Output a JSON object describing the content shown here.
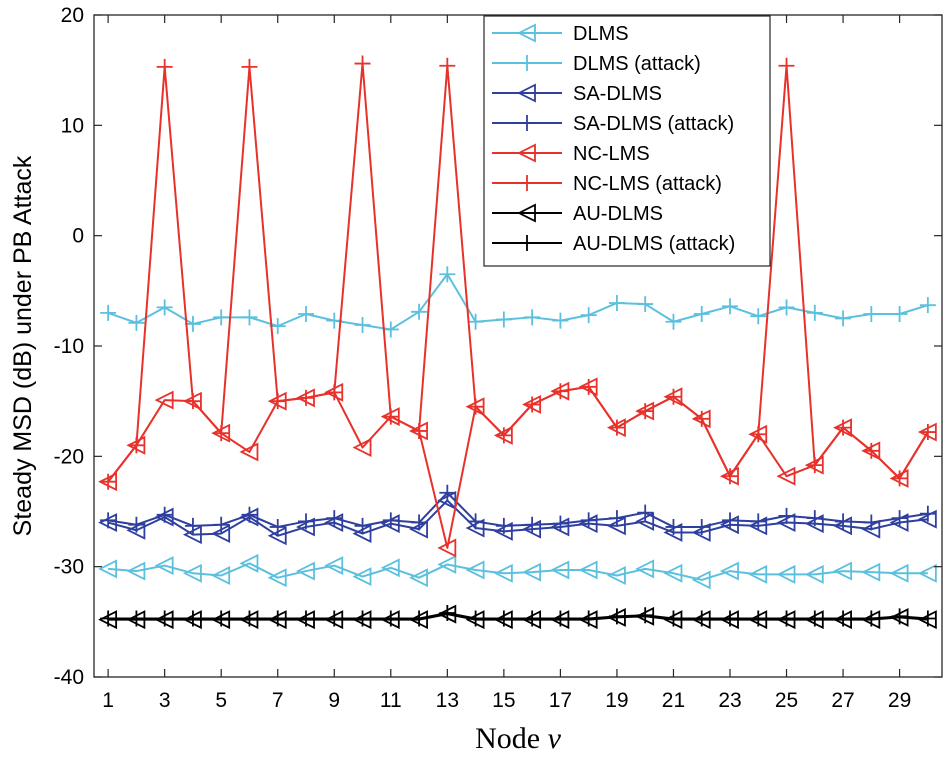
{
  "chart_data": {
    "type": "line",
    "title": "",
    "xlabel": "Node ",
    "xlabel_var": "v",
    "ylabel": "Steady  MSD (dB) under PB Attack",
    "xlim": [
      0.5,
      30.5
    ],
    "ylim": [
      -40,
      20
    ],
    "xticks": [
      1,
      3,
      5,
      7,
      9,
      11,
      13,
      15,
      17,
      19,
      21,
      23,
      25,
      27,
      29
    ],
    "yticks": [
      -40,
      -30,
      -20,
      -10,
      0,
      10,
      20
    ],
    "grid": false,
    "legend_position": "top-right",
    "x": [
      1,
      2,
      3,
      4,
      5,
      6,
      7,
      8,
      9,
      10,
      11,
      12,
      13,
      14,
      15,
      16,
      17,
      18,
      19,
      20,
      21,
      22,
      23,
      24,
      25,
      26,
      27,
      28,
      29,
      30
    ],
    "series": [
      {
        "name": "DLMS",
        "color": "#5bc0de",
        "marker": "triangle-left",
        "values": [
          -30.2,
          -30.4,
          -29.9,
          -30.6,
          -30.8,
          -29.7,
          -31.0,
          -30.4,
          -29.9,
          -30.9,
          -30.1,
          -31.0,
          -29.8,
          -30.3,
          -30.6,
          -30.5,
          -30.3,
          -30.3,
          -30.8,
          -30.2,
          -30.6,
          -31.2,
          -30.4,
          -30.7,
          -30.7,
          -30.7,
          -30.4,
          -30.5,
          -30.6,
          -30.6
        ]
      },
      {
        "name": "DLMS (attack)",
        "color": "#5bc0de",
        "marker": "plus",
        "values": [
          -7.0,
          -7.9,
          -6.5,
          -8.0,
          -7.4,
          -7.4,
          -8.2,
          -7.1,
          -7.7,
          -8.1,
          -8.5,
          -6.9,
          -3.5,
          -7.8,
          -7.6,
          -7.4,
          -7.7,
          -7.2,
          -6.1,
          -6.2,
          -7.8,
          -7.1,
          -6.4,
          -7.3,
          -6.5,
          -7.0,
          -7.5,
          -7.1,
          -7.1,
          -6.3
        ]
      },
      {
        "name": "SA-DLMS",
        "color": "#2e3f9e",
        "marker": "triangle-left",
        "values": [
          -26.0,
          -26.7,
          -25.5,
          -27.1,
          -27.0,
          -25.5,
          -27.2,
          -26.4,
          -26.0,
          -27.0,
          -26.1,
          -26.6,
          -24.0,
          -26.5,
          -26.8,
          -26.6,
          -26.4,
          -26.1,
          -26.3,
          -25.9,
          -26.9,
          -26.9,
          -26.2,
          -26.3,
          -26.0,
          -26.1,
          -26.3,
          -26.6,
          -26.0,
          -25.7
        ]
      },
      {
        "name": "SA-DLMS (attack)",
        "color": "#2e3f9e",
        "marker": "plus",
        "values": [
          -25.8,
          -26.2,
          -25.3,
          -26.3,
          -26.2,
          -25.3,
          -26.4,
          -25.9,
          -25.6,
          -26.3,
          -25.8,
          -26.0,
          -23.3,
          -25.9,
          -26.3,
          -26.2,
          -26.1,
          -25.8,
          -25.6,
          -25.1,
          -26.4,
          -26.4,
          -25.8,
          -25.9,
          -25.4,
          -25.6,
          -25.9,
          -26.0,
          -25.6,
          -25.2
        ]
      },
      {
        "name": "NC-LMS",
        "color": "#e8312a",
        "marker": "triangle-left",
        "values": [
          -22.3,
          -19.0,
          -14.9,
          -15.0,
          -17.9,
          -19.6,
          -15.0,
          -14.7,
          -14.2,
          -19.2,
          -16.4,
          -17.7,
          -28.3,
          -15.5,
          -18.1,
          -15.3,
          -14.1,
          -13.7,
          -17.4,
          -15.9,
          -14.6,
          -16.6,
          -21.8,
          -18.0,
          -21.8,
          -20.8,
          -17.4,
          -19.5,
          -22.0,
          -17.8
        ]
      },
      {
        "name": "NC-LMS (attack)",
        "color": "#e8312a",
        "marker": "plus",
        "values": [
          -22.3,
          -19.0,
          15.3,
          -15.0,
          -17.9,
          15.3,
          -15.0,
          -14.7,
          -14.2,
          15.6,
          -16.4,
          -17.7,
          15.4,
          -15.5,
          -18.1,
          -15.3,
          -14.1,
          -13.7,
          -17.4,
          -15.9,
          -14.6,
          -16.6,
          -21.8,
          -18.0,
          15.4,
          -20.8,
          -17.4,
          -19.5,
          -22.0,
          -17.8
        ]
      },
      {
        "name": "AU-DLMS",
        "color": "#000000",
        "marker": "triangle-left",
        "values": [
          -34.8,
          -34.8,
          -34.8,
          -34.8,
          -34.8,
          -34.8,
          -34.8,
          -34.8,
          -34.8,
          -34.8,
          -34.8,
          -34.8,
          -34.3,
          -34.8,
          -34.8,
          -34.8,
          -34.8,
          -34.8,
          -34.6,
          -34.5,
          -34.8,
          -34.8,
          -34.8,
          -34.8,
          -34.8,
          -34.8,
          -34.8,
          -34.8,
          -34.6,
          -34.8
        ]
      },
      {
        "name": "AU-DLMS (attack)",
        "color": "#000000",
        "marker": "plus",
        "values": [
          -34.7,
          -34.7,
          -34.7,
          -34.7,
          -34.7,
          -34.7,
          -34.7,
          -34.7,
          -34.7,
          -34.7,
          -34.7,
          -34.7,
          -34.2,
          -34.7,
          -34.7,
          -34.7,
          -34.7,
          -34.7,
          -34.5,
          -34.4,
          -34.7,
          -34.7,
          -34.7,
          -34.7,
          -34.7,
          -34.7,
          -34.7,
          -34.7,
          -34.5,
          -34.7
        ]
      }
    ]
  }
}
